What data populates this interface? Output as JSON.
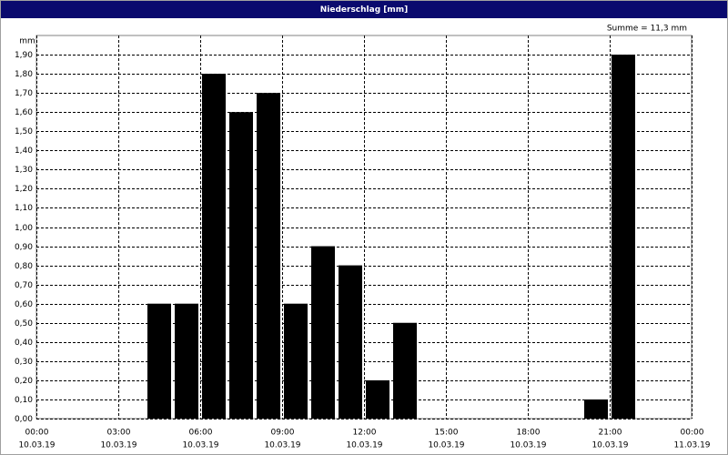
{
  "chart_data": {
    "type": "histogram",
    "title": "Niederschlag [mm]",
    "y_label": "mm",
    "annotation": "Summe = 11,3 mm",
    "bins": [
      0,
      1,
      2,
      3,
      4,
      5,
      6,
      7,
      8,
      9,
      10,
      11,
      12,
      13,
      14,
      15,
      16,
      17,
      18,
      19,
      20,
      21,
      22,
      23,
      24
    ],
    "values": [
      0,
      0,
      0,
      0,
      0.6,
      0.6,
      1.8,
      1.6,
      1.7,
      0.6,
      0.9,
      0.8,
      0.2,
      0.5,
      0,
      0,
      0,
      0,
      0,
      0,
      0.1,
      1.9,
      0,
      0
    ],
    "color": "#000000",
    "xlim": [
      0,
      24
    ],
    "xticks": [
      {
        "value": 0,
        "label": "00:00"
      },
      {
        "value": 3,
        "label": "03:00"
      },
      {
        "value": 6,
        "label": "06:00"
      },
      {
        "value": 9,
        "label": "09:00"
      },
      {
        "value": 12,
        "label": "12:00"
      },
      {
        "value": 15,
        "label": "15:00"
      },
      {
        "value": 18,
        "label": "18:00"
      },
      {
        "value": 21,
        "label": "21:00"
      },
      {
        "value": 24,
        "label": "00:00"
      }
    ],
    "xtick_dates": [
      "10.03.19",
      "10.03.19",
      "10.03.19",
      "10.03.19",
      "10.03.19",
      "10.03.19",
      "10.03.19",
      "10.03.19",
      "11.03.19"
    ],
    "ylim": [
      0,
      2
    ],
    "yticks": [
      {
        "value": 0,
        "label": "0,00"
      },
      {
        "value": 0.1,
        "label": "0,10"
      },
      {
        "value": 0.2,
        "label": "0,20"
      },
      {
        "value": 0.3,
        "label": "0,30"
      },
      {
        "value": 0.4,
        "label": "0,40"
      },
      {
        "value": 0.5,
        "label": "0,50"
      },
      {
        "value": 0.6,
        "label": "0,60"
      },
      {
        "value": 0.7,
        "label": "0,70"
      },
      {
        "value": 0.8,
        "label": "0,80"
      },
      {
        "value": 0.9,
        "label": "0,90"
      },
      {
        "value": 1.0,
        "label": "1,00"
      },
      {
        "value": 1.1,
        "label": "1,10"
      },
      {
        "value": 1.2,
        "label": "1,20"
      },
      {
        "value": 1.3,
        "label": "1,30"
      },
      {
        "value": 1.4,
        "label": "1,40"
      },
      {
        "value": 1.5,
        "label": "1,50"
      },
      {
        "value": 1.6,
        "label": "1,60"
      },
      {
        "value": 1.7,
        "label": "1,70"
      },
      {
        "value": 1.8,
        "label": "1,80"
      },
      {
        "value": 1.9,
        "label": "1,90"
      }
    ],
    "grid": true
  }
}
